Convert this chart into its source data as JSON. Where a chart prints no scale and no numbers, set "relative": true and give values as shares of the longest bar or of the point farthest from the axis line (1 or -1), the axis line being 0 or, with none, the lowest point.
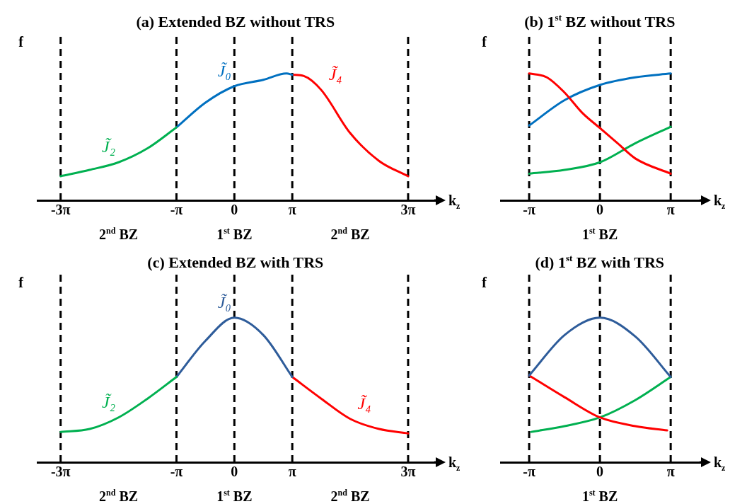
{
  "chart_data": [
    {
      "type": "line",
      "title": "(a) Extended BZ without TRS",
      "xlabel": "k$_{z}$",
      "ylabel": "f",
      "relative": true,
      "xlim": [
        -10.68,
        11
      ],
      "xticks": [
        {
          "value": -9.4248,
          "label": "-3π"
        },
        {
          "value": -3.1416,
          "label": "-π"
        },
        {
          "value": 0,
          "label": "0"
        },
        {
          "value": 3.1416,
          "label": "π"
        },
        {
          "value": 9.4248,
          "label": "3π"
        }
      ],
      "tick_labels": "x",
      "grid": false,
      "legend": false,
      "marker": "none",
      "line_style": "solid",
      "series": [
        {
          "name": "J̃₂",
          "color": "#00b050",
          "x": [
            -9.4248,
            -7.854,
            -6.2832,
            -4.7124,
            -3.1416
          ],
          "values": [
            0.19,
            0.24,
            0.3,
            0.41,
            0.575
          ]
        },
        {
          "name": "J̃₀",
          "color": "#0070c0",
          "x": [
            -3.1416,
            -1.5708,
            0,
            1.5708,
            2.8274,
            3.1416
          ],
          "values": [
            0.575,
            0.77,
            0.9,
            0.95,
            1,
            0.99
          ]
        },
        {
          "name": "J̃₄",
          "color": "#ff0000",
          "x": [
            3.1416,
            3.7699,
            4.7124,
            6.2832,
            7.854,
            9.4248
          ],
          "values": [
            0.99,
            0.98,
            0.87,
            0.53,
            0.31,
            0.19
          ]
        }
      ],
      "ref_lines": [
        {
          "axis": "x",
          "value": -9.4248,
          "color": "#000000",
          "line_style": "dashed"
        },
        {
          "axis": "x",
          "value": -3.1416,
          "color": "#000000",
          "line_style": "dashed"
        },
        {
          "axis": "x",
          "value": 0,
          "color": "#000000",
          "line_style": "dashed"
        },
        {
          "axis": "x",
          "value": 3.1416,
          "color": "#000000",
          "line_style": "dashed"
        },
        {
          "axis": "x",
          "value": 9.4248,
          "color": "#000000",
          "line_style": "dashed"
        }
      ],
      "annotations": [
        "2$^{nd}$ BZ",
        "1$^{st}$ BZ",
        "2$^{nd}$ BZ"
      ]
    },
    {
      "type": "line",
      "title": "(b) 1$^{st}$ BZ without TRS",
      "xlabel": "k$_{z}$",
      "ylabel": "f",
      "relative": true,
      "xlim": [
        -4.4,
        4.55
      ],
      "xticks": [
        {
          "value": -3.1416,
          "label": "-π"
        },
        {
          "value": 0,
          "label": "0"
        },
        {
          "value": 3.1416,
          "label": "π"
        }
      ],
      "tick_labels": "x",
      "grid": false,
      "legend": false,
      "marker": "none",
      "line_style": "solid",
      "series": [
        {
          "color": "#ff0000",
          "x": [
            -3.1416,
            -2.3562,
            -1.5708,
            -0.7854,
            0,
            0.7854,
            1.5708,
            3.1416
          ],
          "values": [
            1,
            0.97,
            0.85,
            0.69,
            0.57,
            0.45,
            0.33,
            0.21
          ]
        },
        {
          "color": "#0070c0",
          "x": [
            -3.1416,
            -1.5708,
            0,
            1.5708,
            3.1416
          ],
          "values": [
            0.59,
            0.79,
            0.91,
            0.97,
            1
          ]
        },
        {
          "color": "#00b050",
          "x": [
            -3.1416,
            -1.5708,
            0,
            1.5708,
            3.1416
          ],
          "values": [
            0.21,
            0.24,
            0.3,
            0.45,
            0.58
          ]
        }
      ],
      "ref_lines": [
        {
          "axis": "x",
          "value": -3.1416,
          "color": "#000000",
          "line_style": "dashed"
        },
        {
          "axis": "x",
          "value": 0,
          "color": "#000000",
          "line_style": "dashed"
        },
        {
          "axis": "x",
          "value": 3.1416,
          "color": "#000000",
          "line_style": "dashed"
        }
      ],
      "annotations": [
        "1$^{st}$ BZ"
      ]
    },
    {
      "type": "line",
      "title": "(c) Extended BZ with TRS",
      "xlabel": "k$_{z}$",
      "ylabel": "f",
      "relative": true,
      "xlim": [
        -10.68,
        11
      ],
      "xticks": [
        {
          "value": -9.4248,
          "label": "-3π"
        },
        {
          "value": -3.1416,
          "label": "-π"
        },
        {
          "value": 0,
          "label": "0"
        },
        {
          "value": 3.1416,
          "label": "π"
        },
        {
          "value": 9.4248,
          "label": "3π"
        }
      ],
      "tick_labels": "x",
      "grid": false,
      "legend": false,
      "marker": "none",
      "line_style": "solid",
      "series": [
        {
          "name": "J̃₂",
          "color": "#00b050",
          "x": [
            -9.4248,
            -7.854,
            -6.2832,
            -4.7124,
            -3.1416
          ],
          "values": [
            0.21,
            0.23,
            0.31,
            0.44,
            0.59
          ]
        },
        {
          "name": "J̃₀",
          "color": "#2e5c9a",
          "x": [
            -3.1416,
            -1.5708,
            0,
            1.5708,
            3.1416
          ],
          "values": [
            0.59,
            0.84,
            1,
            0.88,
            0.59
          ]
        },
        {
          "name": "J̃₄",
          "color": "#ff0000",
          "x": [
            3.1416,
            4.7124,
            6.2832,
            7.854,
            9.4248
          ],
          "values": [
            0.59,
            0.44,
            0.3,
            0.23,
            0.2
          ]
        }
      ],
      "ref_lines": [
        {
          "axis": "x",
          "value": -9.4248,
          "color": "#000000",
          "line_style": "dashed"
        },
        {
          "axis": "x",
          "value": -3.1416,
          "color": "#000000",
          "line_style": "dashed"
        },
        {
          "axis": "x",
          "value": 0,
          "color": "#000000",
          "line_style": "dashed"
        },
        {
          "axis": "x",
          "value": 3.1416,
          "color": "#000000",
          "line_style": "dashed"
        },
        {
          "axis": "x",
          "value": 9.4248,
          "color": "#000000",
          "line_style": "dashed"
        }
      ],
      "annotations": [
        "2$^{nd}$ BZ",
        "1$^{st}$ BZ",
        "2$^{nd}$ BZ"
      ]
    },
    {
      "type": "line",
      "title": "(d) 1$^{st}$ BZ with TRS",
      "xlabel": "k$_{z}$",
      "ylabel": "f",
      "relative": true,
      "xlim": [
        -4.4,
        4.55
      ],
      "xticks": [
        {
          "value": -3.1416,
          "label": "-π"
        },
        {
          "value": 0,
          "label": "0"
        },
        {
          "value": 3.1416,
          "label": "π"
        }
      ],
      "tick_labels": "x",
      "grid": false,
      "legend": false,
      "marker": "none",
      "line_style": "solid",
      "series": [
        {
          "color": "#2e5c9a",
          "x": [
            -3.1416,
            -1.5708,
            0,
            1.5708,
            3.1416
          ],
          "values": [
            0.6,
            0.88,
            1,
            0.87,
            0.59
          ]
        },
        {
          "color": "#ff0000",
          "x": [
            -3.1416,
            -1.5708,
            0,
            1.5708,
            2.9845
          ],
          "values": [
            0.6,
            0.45,
            0.31,
            0.25,
            0.22
          ]
        },
        {
          "color": "#00b050",
          "x": [
            -3.0473,
            -1.5708,
            0,
            1.5708,
            3.1416
          ],
          "values": [
            0.21,
            0.25,
            0.31,
            0.43,
            0.59
          ]
        }
      ],
      "ref_lines": [
        {
          "axis": "x",
          "value": -3.1416,
          "color": "#000000",
          "line_style": "dashed"
        },
        {
          "axis": "x",
          "value": 0,
          "color": "#000000",
          "line_style": "dashed"
        },
        {
          "axis": "x",
          "value": 3.1416,
          "color": "#000000",
          "line_style": "dashed"
        }
      ],
      "annotations": [
        "1$^{st}$ BZ"
      ]
    }
  ]
}
